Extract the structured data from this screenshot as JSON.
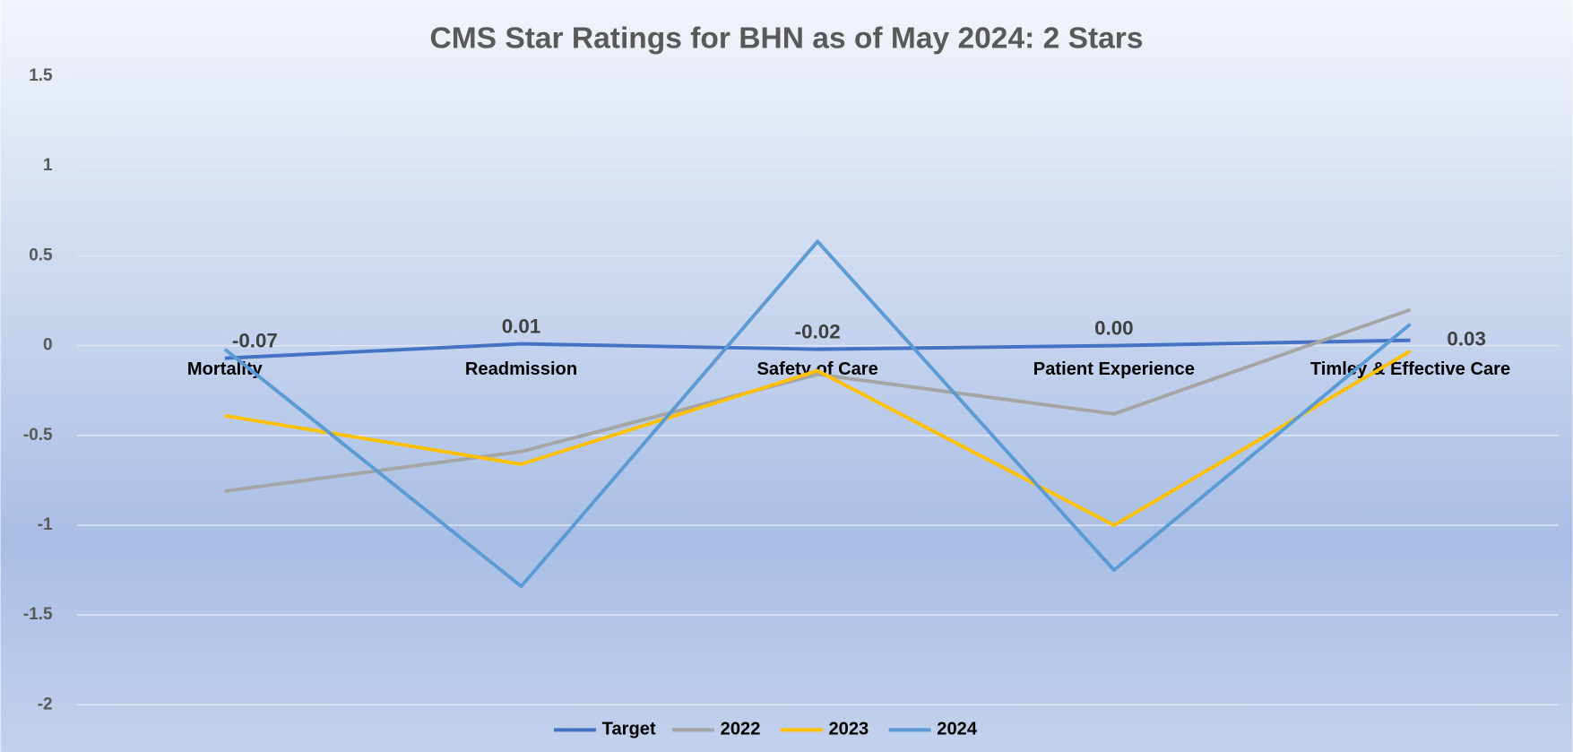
{
  "chart_data": {
    "type": "line",
    "title": "CMS Star Ratings for BHN as of May 2024: 2 Stars",
    "categories": [
      "Mortality",
      "Readmission",
      "Safety of Care",
      "Patient Experience",
      "Timley & Effective Care"
    ],
    "series": [
      {
        "name": "Target",
        "color": "#4472c4",
        "values": [
          -0.07,
          0.01,
          -0.02,
          0.0,
          0.03
        ],
        "value_labels": [
          "-0.07",
          "0.01",
          "-0.02",
          "0.00",
          "0.03"
        ]
      },
      {
        "name": "2022",
        "color": "#a5a5a5",
        "values": [
          -0.81,
          -0.59,
          -0.16,
          -0.38,
          0.2
        ]
      },
      {
        "name": "2023",
        "color": "#ffc000",
        "values": [
          -0.39,
          -0.66,
          -0.14,
          -1.0,
          -0.03
        ]
      },
      {
        "name": "2024",
        "color": "#5b9bd5",
        "values": [
          -0.02,
          -1.34,
          0.58,
          -1.25,
          0.12
        ]
      }
    ],
    "ylim": [
      -2,
      1.5
    ],
    "yticks": [
      1.5,
      1,
      0.5,
      0,
      -0.5,
      -1,
      -1.5,
      -2
    ],
    "grid": true,
    "legend": "bottom"
  }
}
